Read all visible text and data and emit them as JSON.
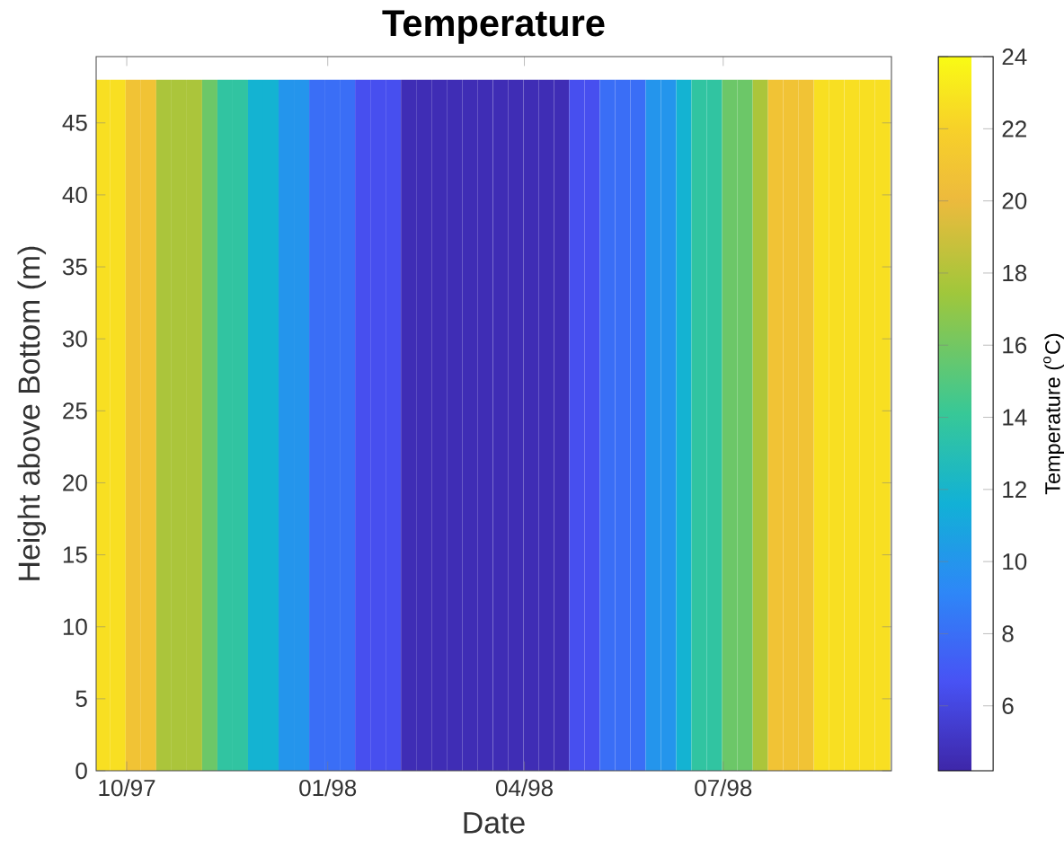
{
  "chart_data": {
    "type": "bar",
    "title": "Temperature",
    "xlabel": "Date",
    "ylabel": "Height above Bottom (m)",
    "clabel": "Temperature ($^{o}$C)",
    "x": [
      "1997-09-20",
      "1997-09-27",
      "1997-10-04",
      "1997-10-11",
      "1997-10-18",
      "1997-10-25",
      "1997-11-01",
      "1997-11-08",
      "1997-11-15",
      "1997-11-22",
      "1997-11-29",
      "1997-12-06",
      "1997-12-13",
      "1997-12-20",
      "1997-12-27",
      "1998-01-03",
      "1998-01-10",
      "1998-01-17",
      "1998-01-24",
      "1998-01-31",
      "1998-02-07",
      "1998-02-14",
      "1998-02-21",
      "1998-02-28",
      "1998-03-07",
      "1998-03-14",
      "1998-03-21",
      "1998-03-28",
      "1998-04-04",
      "1998-04-11",
      "1998-04-18",
      "1998-04-25",
      "1998-05-02",
      "1998-05-09",
      "1998-05-16",
      "1998-05-23",
      "1998-05-30",
      "1998-06-06",
      "1998-06-13",
      "1998-06-20",
      "1998-06-27",
      "1998-07-04",
      "1998-07-11",
      "1998-07-18",
      "1998-07-25",
      "1998-08-01",
      "1998-08-08",
      "1998-08-15",
      "1998-08-22",
      "1998-08-29",
      "1998-09-05",
      "1998-09-12"
    ],
    "values": [
      48,
      48,
      48,
      48,
      48,
      48,
      48,
      48,
      48,
      48,
      48,
      48,
      48,
      48,
      48,
      48,
      48,
      48,
      48,
      48,
      48,
      48,
      48,
      48,
      48,
      48,
      48,
      48,
      48,
      48,
      48,
      48,
      48,
      48,
      48,
      48,
      48,
      48,
      48,
      48,
      48,
      48,
      48,
      48,
      48,
      48,
      48,
      48,
      48,
      48,
      48,
      48
    ],
    "cvalues": [
      22.7,
      22.7,
      20.8,
      20.8,
      17.8,
      17.8,
      17.8,
      15.8,
      13.7,
      13.7,
      11.8,
      11.8,
      10,
      10,
      8,
      8,
      8,
      6.5,
      6.5,
      6.5,
      4.6,
      4.6,
      4.6,
      4.6,
      4.6,
      4.6,
      4.6,
      4.6,
      4.6,
      4.6,
      4.6,
      6.5,
      6.5,
      8,
      8,
      8,
      10,
      10,
      11.8,
      13.7,
      13.7,
      15.8,
      15.8,
      17.8,
      20.8,
      20.8,
      20.8,
      22.7,
      22.7,
      22.7,
      22.7,
      22.7
    ],
    "xlim": [
      "1997-09-17",
      "1998-09-16"
    ],
    "xticks": [
      {
        "value": "1997-10-01",
        "label": "10/97"
      },
      {
        "value": "1998-01-01",
        "label": "01/98"
      },
      {
        "value": "1998-04-01",
        "label": "04/98"
      },
      {
        "value": "1998-07-01",
        "label": "07/98"
      }
    ],
    "ylim": [
      0,
      49.6
    ],
    "yticks": [
      0,
      5,
      10,
      15,
      20,
      25,
      30,
      35,
      40,
      45
    ],
    "clim": [
      4.2,
      24
    ],
    "cticks": [
      6,
      8,
      10,
      12,
      14,
      16,
      18,
      20,
      22,
      24
    ]
  }
}
